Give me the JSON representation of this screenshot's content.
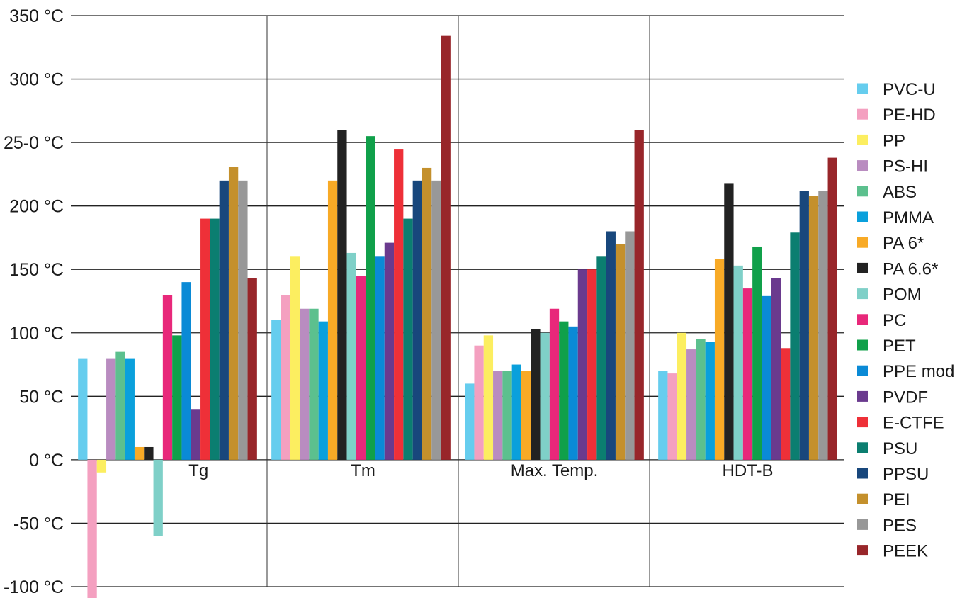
{
  "chart_data": {
    "type": "bar",
    "categories": [
      "Tg",
      "Tm",
      "Max. Temp.",
      "HDT-B"
    ],
    "ylim": [
      -100,
      350
    ],
    "yticks": [
      350,
      300,
      250,
      200,
      150,
      100,
      50,
      0,
      -50,
      -100
    ],
    "ytick_labels": [
      "350 °C",
      "300 °C",
      "25-0 °C",
      "200 °C",
      "150 °C",
      "100 °C",
      "50 °C",
      "0 °C",
      "-50 °C",
      "-100 °C"
    ],
    "grid": true,
    "legend_position": "right",
    "series": [
      {
        "name": "PVC-U",
        "color": "#66cdee",
        "values": [
          80,
          110,
          60,
          70
        ]
      },
      {
        "name": "PE-HD",
        "color": "#f4a0c0",
        "values": [
          -110,
          130,
          90,
          68
        ]
      },
      {
        "name": "PP",
        "color": "#fcee60",
        "values": [
          -10,
          160,
          98,
          100
        ]
      },
      {
        "name": "PS-HI",
        "color": "#b98cc0",
        "values": [
          80,
          119,
          70,
          87
        ]
      },
      {
        "name": "ABS",
        "color": "#5cc08e",
        "values": [
          85,
          119,
          70,
          95
        ]
      },
      {
        "name": "PMMA",
        "color": "#0aa0dc",
        "values": [
          80,
          109,
          75,
          93
        ]
      },
      {
        "name": "PA 6*",
        "color": "#f8aa26",
        "values": [
          10,
          220,
          70,
          158
        ]
      },
      {
        "name": "PA 6.6*",
        "color": "#222222",
        "values": [
          10,
          260,
          103,
          218
        ]
      },
      {
        "name": "POM",
        "color": "#7fd0c8",
        "values": [
          -60,
          163,
          100,
          153
        ]
      },
      {
        "name": "PC",
        "color": "#e8287a",
        "values": [
          130,
          145,
          119,
          135
        ]
      },
      {
        "name": "PET",
        "color": "#10a04a",
        "values": [
          98,
          255,
          109,
          168
        ]
      },
      {
        "name": "PPE mod",
        "color": "#0a8ad6",
        "values": [
          140,
          160,
          105,
          129
        ]
      },
      {
        "name": "PVDF",
        "color": "#6a3a8e",
        "values": [
          40,
          171,
          150,
          143
        ]
      },
      {
        "name": "E-CTFE",
        "color": "#ee3038",
        "values": [
          190,
          245,
          150,
          88
        ]
      },
      {
        "name": "PSU",
        "color": "#0b7e70",
        "values": [
          190,
          190,
          160,
          179
        ]
      },
      {
        "name": "PPSU",
        "color": "#18477c",
        "values": [
          220,
          220,
          180,
          212
        ]
      },
      {
        "name": "PEI",
        "color": "#c4902c",
        "values": [
          231,
          230,
          170,
          208
        ]
      },
      {
        "name": "PES",
        "color": "#989898",
        "values": [
          220,
          220,
          180,
          212
        ]
      },
      {
        "name": "PEEK",
        "color": "#98262a",
        "values": [
          143,
          334,
          260,
          238
        ]
      }
    ]
  }
}
